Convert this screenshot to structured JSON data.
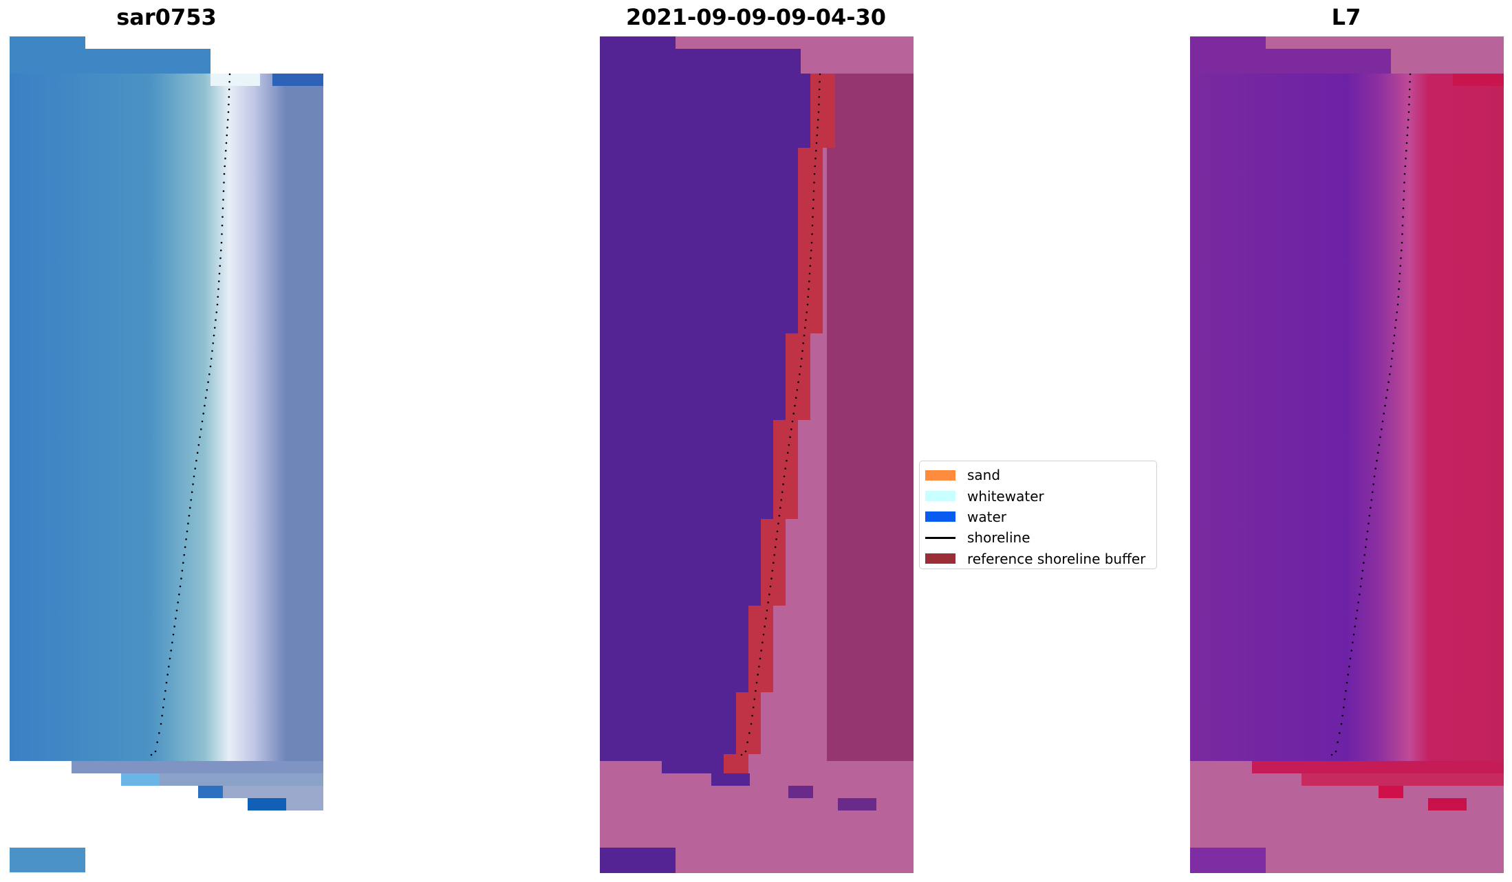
{
  "panels": [
    {
      "id": "rgb",
      "title": "sar0753"
    },
    {
      "id": "classified",
      "title": "2021-09-09-09-04-30"
    },
    {
      "id": "index",
      "title": "L7"
    }
  ],
  "legend": {
    "items": [
      {
        "label": "sand",
        "kind": "patch",
        "color": "#ff8c3c"
      },
      {
        "label": "whitewater",
        "kind": "patch",
        "color": "#c9ffff"
      },
      {
        "label": "water",
        "kind": "patch",
        "color": "#0a5cf0"
      },
      {
        "label": "shoreline",
        "kind": "line",
        "color": "#000000"
      },
      {
        "label": "reference shoreline buffer",
        "kind": "patch",
        "color": "#9a2e36"
      }
    ]
  },
  "colors": {
    "background": "#ffffff",
    "ocean_blue": "#3e86c4",
    "classified_water_purple": "#542495",
    "classified_land_pink": "#b8639a",
    "buffer_red": "#c03246",
    "index_purple": "#7c2a9e",
    "index_red": "#c51c58"
  }
}
